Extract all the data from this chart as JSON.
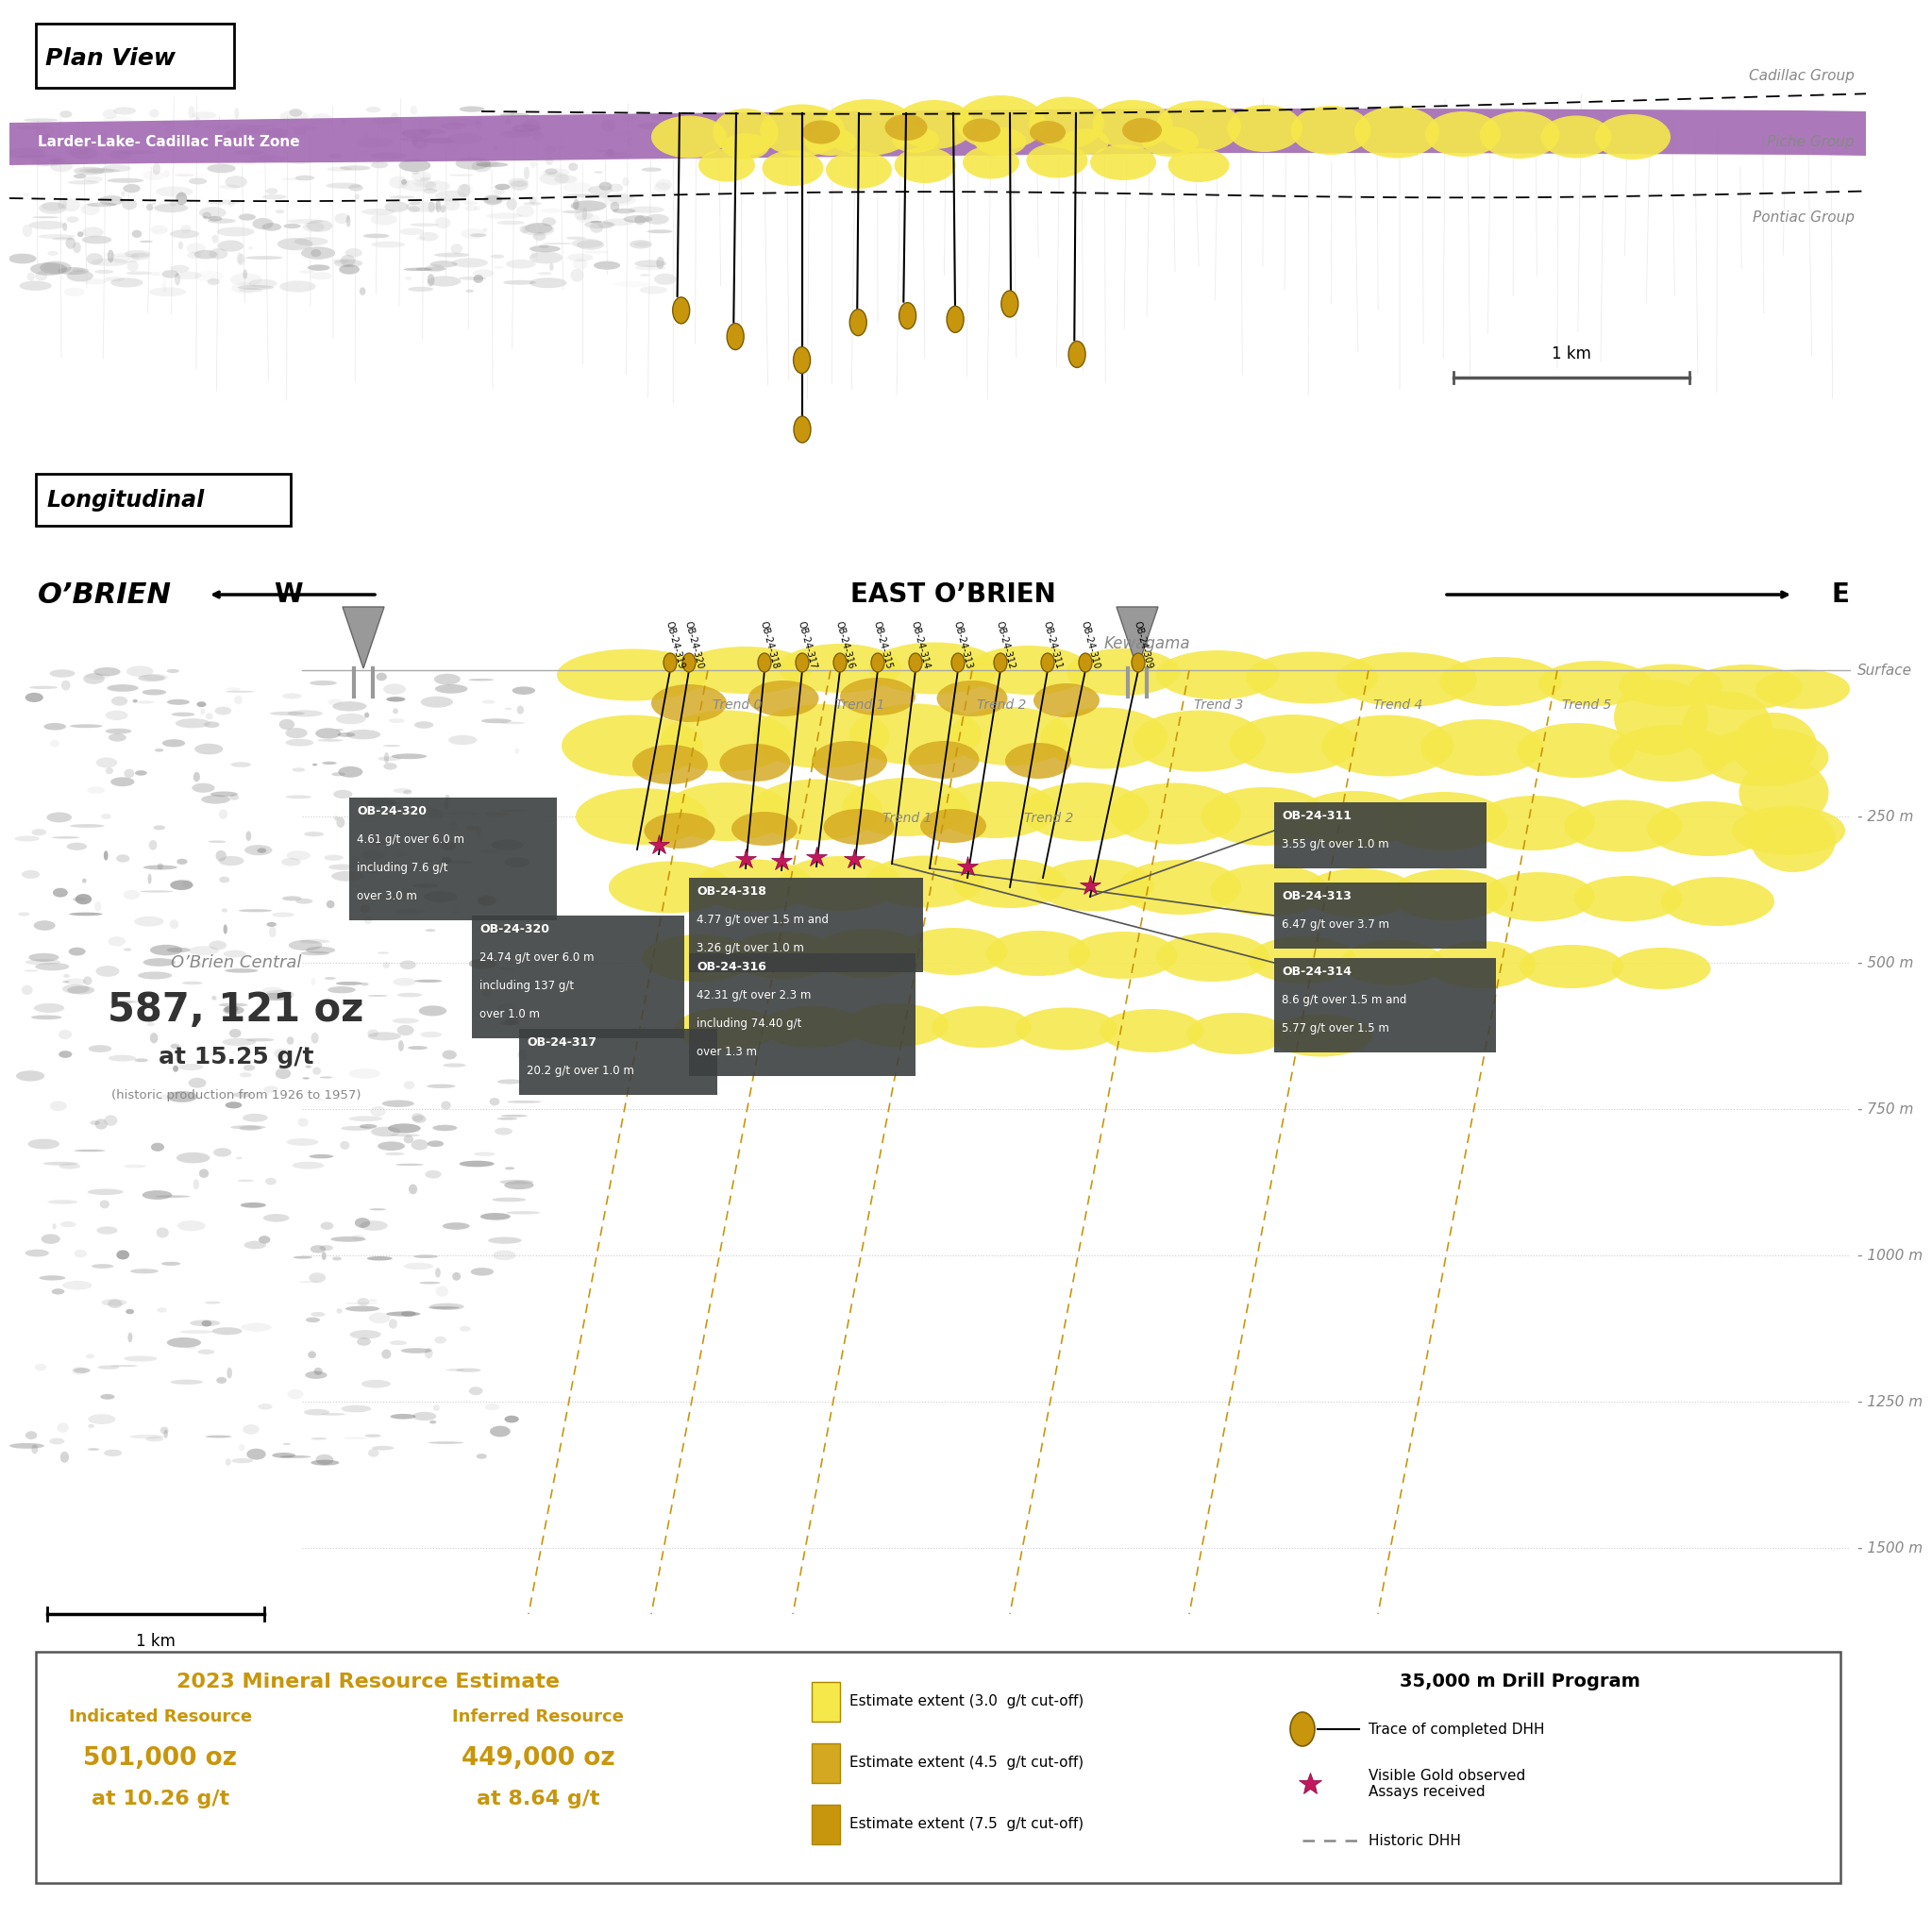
{
  "fig_width": 19.67,
  "fig_height": 20.11,
  "background_color": "#ffffff",
  "plan_view_label": "Plan View",
  "longitudinal_label": "Longitudinal",
  "plan_fault_label": "Larder-Lake- Cadillac Fault Zone",
  "group_labels": [
    "Cadillac Group",
    "Piche Group",
    "Pontiac Group"
  ],
  "long_left_label": "O’BRIEN",
  "long_w_label": "W",
  "long_east_label": "EAST O’BRIEN",
  "long_e_label": "E",
  "long_place_label": "Kewagama",
  "depth_labels": [
    "Surface",
    "- 250 m",
    "- 500 m",
    "- 750 m",
    "- 1000 m",
    "- 1250 m",
    "- 1500 m"
  ],
  "trend_labels": [
    "Trend 0",
    "Trend 1",
    "Trend 2",
    "Trend 3",
    "Trend 4",
    "Trend 5"
  ],
  "obrien_central_label": "O’Brien Central",
  "production_label": "587, 121 oz",
  "production_grade": "at 15.25 g/t",
  "production_note": "(historic production from 1926 to 1957)",
  "mineral_resource_title": "2023 Mineral Resource Estimate",
  "indicated_label": "Indicated Resource",
  "indicated_oz": "501,000 oz",
  "indicated_grade": "at 10.26 g/t",
  "inferred_label": "Inferred Resource",
  "inferred_oz": "449,000 oz",
  "inferred_grade": "at 8.64 g/t",
  "legend_estimates": [
    "Estimate extent (3.0  g/t cut-off)",
    "Estimate extent (4.5  g/t cut-off)",
    "Estimate extent (7.5  g/t cut-off)"
  ],
  "drill_program_title": "35,000 m Drill Program",
  "legend_dhh_label": "Trace of completed DHH",
  "legend_gold_label": "Visible Gold observed\nAssays received",
  "legend_historic_label": "Historic DHH",
  "yellow_light": "#F5E84A",
  "yellow_mid": "#D4A820",
  "yellow_dark": "#C8960C",
  "purple_color": "#A066B0",
  "gray_color": "#888888",
  "dark_gray": "#404040",
  "box_color": "#3D4040"
}
